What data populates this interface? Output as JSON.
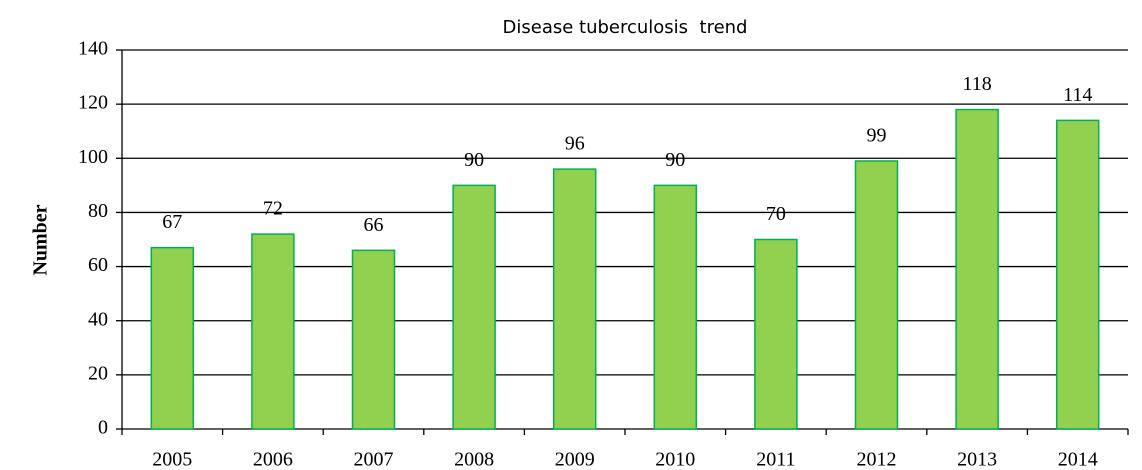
{
  "chart_data": {
    "type": "bar",
    "title": "Disease tuberculosis  trend",
    "ylabel": "Number",
    "categories": [
      "2005",
      "2006",
      "2007",
      "2008",
      "2009",
      "2010",
      "2011",
      "2012",
      "2013",
      "2014"
    ],
    "values": [
      67,
      72,
      66,
      90,
      96,
      90,
      70,
      99,
      118,
      114
    ],
    "color": "#92d050",
    "edgecolor": "#00b050",
    "ylim": [
      0,
      140
    ],
    "yticks": [
      0,
      20,
      40,
      60,
      80,
      100,
      120,
      140
    ],
    "grid": true
  }
}
